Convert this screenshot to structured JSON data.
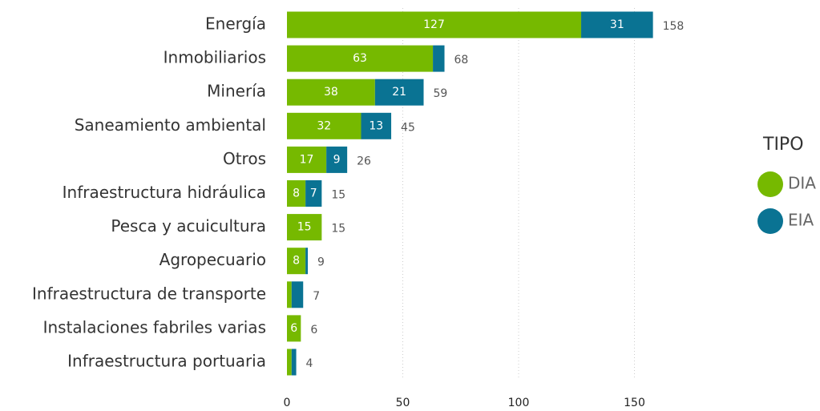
{
  "chart_data": {
    "type": "stacked-bar-horizontal",
    "categories": [
      "Energía",
      "Inmobiliarios",
      "Minería",
      "Saneamiento ambiental",
      "Otros",
      "Infraestructura hidráulica",
      "Pesca y acuicultura",
      "Agropecuario",
      "Infraestructura de transporte",
      "Instalaciones fabriles varias",
      "Infraestructura portuaria"
    ],
    "series": [
      {
        "name": "DIA",
        "color": "#76b900",
        "values": [
          127,
          63,
          38,
          32,
          17,
          8,
          15,
          8,
          2,
          6,
          2
        ]
      },
      {
        "name": "EIA",
        "color": "#0a7393",
        "values": [
          31,
          5,
          21,
          13,
          9,
          7,
          0,
          1,
          5,
          0,
          2
        ]
      }
    ],
    "totals": [
      158,
      68,
      59,
      45,
      26,
      15,
      15,
      9,
      7,
      6,
      4
    ],
    "legend_title": "TIPO",
    "xlim": [
      0,
      165
    ],
    "xticks": [
      0,
      50,
      100,
      150
    ],
    "grid": true
  }
}
